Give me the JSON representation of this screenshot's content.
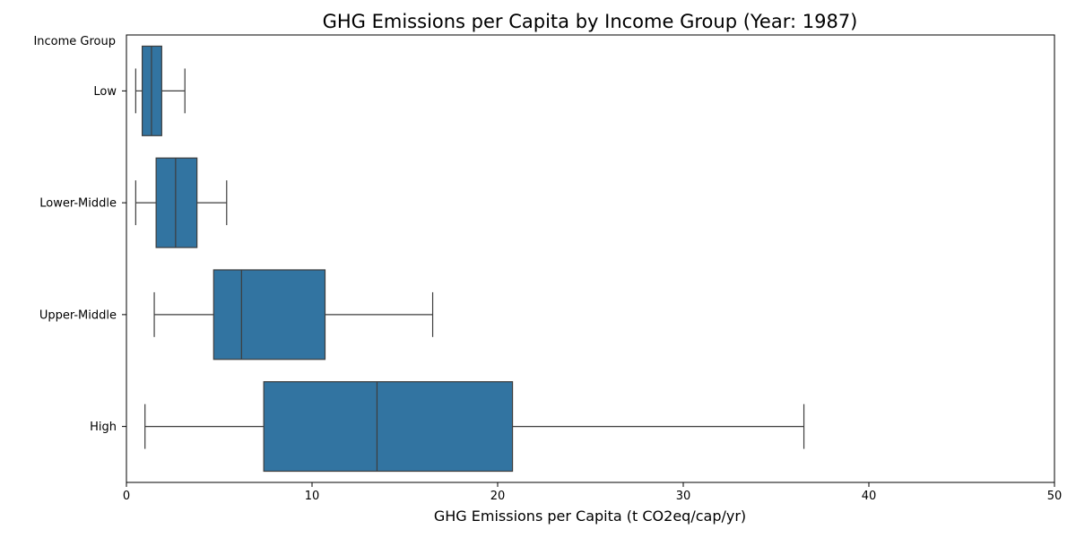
{
  "chart_data": {
    "type": "boxplot",
    "orientation": "horizontal",
    "title": "GHG Emissions per Capita by Income Group (Year: 1987)",
    "xlabel": "GHG Emissions per Capita (t CO2eq/cap/yr)",
    "ylabel": "Income Group",
    "xlim": [
      0,
      50
    ],
    "xticks": [
      0,
      10,
      20,
      30,
      40,
      50
    ],
    "grid": false,
    "box_color": "#3274a1",
    "line_color": "#3d3d3d",
    "categories": [
      "Low",
      "Lower-Middle",
      "Upper-Middle",
      "High"
    ],
    "boxes": [
      {
        "label": "Low",
        "whisker_low": 0.5,
        "q1": 0.85,
        "median": 1.35,
        "q3": 1.9,
        "whisker_high": 3.15
      },
      {
        "label": "Lower-Middle",
        "whisker_low": 0.5,
        "q1": 1.6,
        "median": 2.65,
        "q3": 3.8,
        "whisker_high": 5.4
      },
      {
        "label": "Upper-Middle",
        "whisker_low": 1.5,
        "q1": 4.7,
        "median": 6.2,
        "q3": 10.7,
        "whisker_high": 16.5
      },
      {
        "label": "High",
        "whisker_low": 1.0,
        "q1": 7.4,
        "median": 13.5,
        "q3": 20.8,
        "whisker_high": 36.5
      }
    ]
  }
}
